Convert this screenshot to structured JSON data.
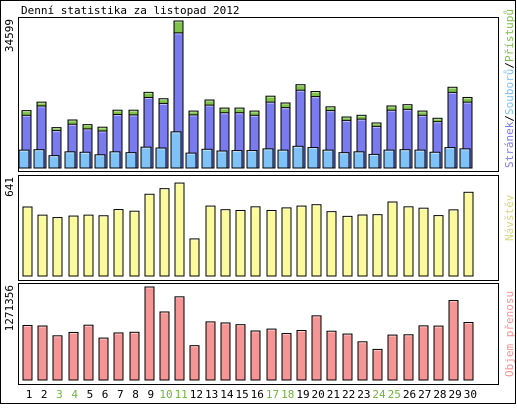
{
  "title": "Denní statistika za listopad 2012",
  "colors": {
    "hits": "#7b7bf0",
    "files": "#7fc2f7",
    "pages": "#7ec24a",
    "visits": "#fbfb9e",
    "traffic": "#f59595",
    "weekend_day": "#6cb63a",
    "weekday": "#000000",
    "frame": "#000000"
  },
  "chart_data": [
    {
      "type": "bar",
      "panel": "requests",
      "ymax_label": "34599",
      "ylim": [
        0,
        34599
      ],
      "legend": [
        "Stránek",
        "Souborů",
        "Přístupů"
      ],
      "legend_separator": "/",
      "categories": [
        "1",
        "2",
        "3",
        "4",
        "5",
        "6",
        "7",
        "8",
        "9",
        "10",
        "11",
        "12",
        "13",
        "14",
        "15",
        "16",
        "17",
        "18",
        "19",
        "20",
        "21",
        "22",
        "23",
        "24",
        "25",
        "26",
        "27",
        "28",
        "29",
        "30"
      ],
      "weekend": [
        false,
        false,
        true,
        true,
        false,
        false,
        false,
        false,
        false,
        true,
        true,
        false,
        false,
        false,
        false,
        false,
        true,
        true,
        false,
        false,
        false,
        false,
        false,
        true,
        true,
        false,
        false,
        false,
        false,
        false
      ],
      "series": [
        {
          "name": "Přístupů",
          "values": [
            13500,
            15500,
            9500,
            11300,
            10200,
            9600,
            13600,
            13600,
            17800,
            16300,
            34599,
            13400,
            16000,
            14100,
            14100,
            13400,
            16900,
            15300,
            19600,
            18000,
            14400,
            12000,
            12400,
            10600,
            14600,
            14900,
            13400,
            11700,
            19000,
            16600
          ]
        },
        {
          "name": "Stránek",
          "values": [
            12400,
            14600,
            8800,
            10300,
            9200,
            8700,
            12600,
            12500,
            16600,
            15200,
            31800,
            12500,
            14800,
            13000,
            13000,
            12400,
            15500,
            14200,
            18300,
            16800,
            13500,
            11200,
            11500,
            9800,
            13600,
            13800,
            12400,
            10900,
            17800,
            15500
          ]
        },
        {
          "name": "Souborů",
          "values": [
            4200,
            4300,
            2900,
            3800,
            3700,
            3100,
            3800,
            3600,
            4900,
            4700,
            8500,
            3500,
            4400,
            4000,
            4100,
            4100,
            4500,
            4200,
            5100,
            4800,
            4200,
            3600,
            3800,
            3200,
            4200,
            4300,
            4200,
            3700,
            4800,
            4500
          ]
        }
      ]
    },
    {
      "type": "bar",
      "panel": "visits",
      "ymax_label": "641",
      "ylim": [
        0,
        641
      ],
      "legend": [
        "Návštěv"
      ],
      "categories": [
        "1",
        "2",
        "3",
        "4",
        "5",
        "6",
        "7",
        "8",
        "9",
        "10",
        "11",
        "12",
        "13",
        "14",
        "15",
        "16",
        "17",
        "18",
        "19",
        "20",
        "21",
        "22",
        "23",
        "24",
        "25",
        "26",
        "27",
        "28",
        "29",
        "30"
      ],
      "series": [
        {
          "name": "Návštěv",
          "values": [
            456,
            402,
            386,
            396,
            402,
            398,
            439,
            428,
            540,
            577,
            614,
            245,
            462,
            438,
            433,
            457,
            433,
            450,
            462,
            471,
            425,
            394,
            403,
            405,
            489,
            457,
            448,
            399,
            437,
            553
          ]
        }
      ]
    },
    {
      "type": "bar",
      "panel": "traffic",
      "ymax_label": "1271356",
      "ylim": [
        0,
        1271356
      ],
      "legend": [
        "Objem přenosu"
      ],
      "categories": [
        "1",
        "2",
        "3",
        "4",
        "5",
        "6",
        "7",
        "8",
        "9",
        "10",
        "11",
        "12",
        "13",
        "14",
        "15",
        "16",
        "17",
        "18",
        "19",
        "20",
        "21",
        "22",
        "23",
        "24",
        "25",
        "26",
        "27",
        "28",
        "29",
        "30"
      ],
      "series": [
        {
          "name": "Objem přenosu",
          "values": [
            745000,
            738000,
            604000,
            650000,
            749000,
            573000,
            643000,
            652000,
            1271356,
            930000,
            1137000,
            469000,
            794000,
            780000,
            756000,
            670000,
            696000,
            635000,
            677000,
            877000,
            667000,
            628000,
            522000,
            418000,
            614000,
            618000,
            740000,
            737000,
            1086000,
            786000
          ]
        }
      ]
    }
  ]
}
